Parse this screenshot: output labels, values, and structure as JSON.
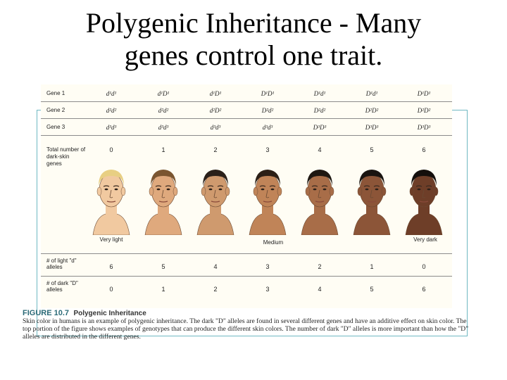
{
  "title": {
    "line1": "Polygenic Inheritance -  Many",
    "line2": "genes control one trait."
  },
  "genes": [
    {
      "label": "Gene 1",
      "genotypes": [
        "d¹d¹",
        "d¹D¹",
        "d¹D¹",
        "D¹D¹",
        "D¹d¹",
        "D¹d¹",
        "D¹D¹"
      ]
    },
    {
      "label": "Gene 2",
      "genotypes": [
        "d²d²",
        "d²d²",
        "d²D²",
        "D²d²",
        "D²d²",
        "D²D²",
        "D²D²"
      ]
    },
    {
      "label": "Gene 3",
      "genotypes": [
        "d³d³",
        "d³d³",
        "d³d³",
        "d³d³",
        "D³D³",
        "D³D³",
        "D³D³"
      ]
    }
  ],
  "total": {
    "label": "Total number of dark-skin genes",
    "values": [
      "0",
      "1",
      "2",
      "3",
      "4",
      "5",
      "6"
    ]
  },
  "shades": {
    "very_light": "Very light",
    "medium": "Medium",
    "very_dark": "Very dark"
  },
  "skin_colors": [
    "#f1c9a0",
    "#dfa97d",
    "#cf9a6e",
    "#c08458",
    "#a86d48",
    "#8c5538",
    "#6e3e28"
  ],
  "hair_colors": [
    "#e8cf83",
    "#7a5530",
    "#2a2019",
    "#2b1f16",
    "#1f1812",
    "#1a1410",
    "#140f0c"
  ],
  "light_alleles": {
    "label": "# of light \"d\" alleles",
    "values": [
      "6",
      "5",
      "4",
      "3",
      "2",
      "1",
      "0"
    ]
  },
  "dark_alleles": {
    "label": "# of dark \"D\" alleles",
    "values": [
      "0",
      "1",
      "2",
      "3",
      "4",
      "5",
      "6"
    ]
  },
  "caption": {
    "figure": "FIGURE 10.7",
    "title": "Polygenic Inheritance",
    "text": "Skin color in humans is an example of polygenic inheritance. The dark \"D\" alleles are found in several different genes and have an additive effect on skin color. The top portion of the figure shows examples of genotypes that can produce the different skin colors. The number of dark \"D\" alleles is more important than how the \"D\" alleles are distributed in the different genes."
  }
}
